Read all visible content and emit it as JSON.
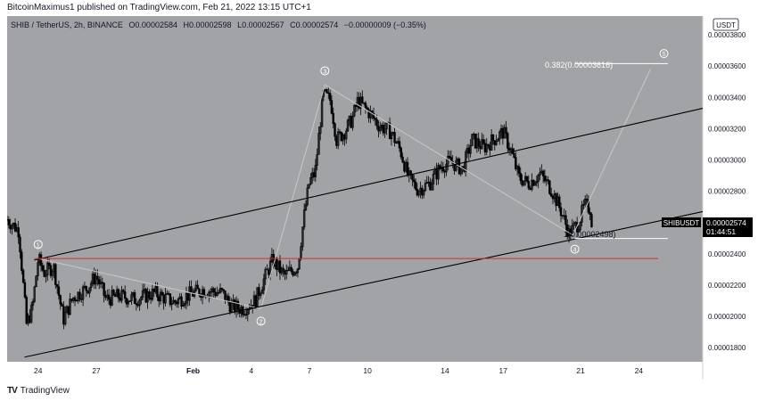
{
  "header": {
    "publisher_line": "BitcoinMaximus1 published on TradingView.com, Feb 21, 2022 13:15 UTC+1"
  },
  "legend": {
    "symbol_line": "SHIB / TetherUS, 2h, BINANCE",
    "o_label": "O",
    "o_value": "0.00002584",
    "h_label": "H",
    "h_value": "0.00002598",
    "l_label": "L",
    "l_value": "0.00002567",
    "c_label": "C",
    "c_value": "0.00002574",
    "change": "−0.00000009 (−0.35%)"
  },
  "currency_label": "USDT",
  "price_tag": {
    "symbol": "SHIBUSDT",
    "price": "0.00002574",
    "countdown": "01:44:51"
  },
  "fib": {
    "label_top": "0.382(0.00003616)",
    "label_bottom": "1(0.00002498)"
  },
  "waves": [
    "1",
    "2",
    "3",
    "4",
    "5"
  ],
  "footer": {
    "brand": "TradingView",
    "logo_glyph": "TV"
  },
  "colors": {
    "background": "#a2a3a7",
    "support_line": "#d32f2f",
    "channel": "#000000",
    "candles": "#000000",
    "wave_path": "#c8c8c8"
  },
  "chart_data": {
    "type": "candlestick",
    "y_axis_ticks": [
      "0.00003800",
      "0.00003600",
      "0.00003400",
      "0.00003200",
      "0.00003000",
      "0.00002800",
      "0.00002600",
      "0.00002400",
      "0.00002200",
      "0.00002000",
      "0.00001800"
    ],
    "y_tick_values": [
      3.8e-05,
      3.6e-05,
      3.4e-05,
      3.2e-05,
      3e-05,
      2.8e-05,
      2.6e-05,
      2.4e-05,
      2.2e-05,
      2e-05,
      1.8e-05
    ],
    "ylim": [
      1.71e-05,
      3.92e-05
    ],
    "x_axis_ticks": [
      "24",
      "27",
      "Feb",
      "4",
      "7",
      "10",
      "14",
      "17",
      "21",
      "24"
    ],
    "x_tick_days": [
      24,
      27,
      32,
      35,
      38,
      41,
      45,
      48,
      52,
      55
    ],
    "xlim": [
      22.4,
      58.3
    ],
    "price_path": [
      [
        22.4,
        2.62e-05
      ],
      [
        23.0,
        2.55e-05
      ],
      [
        23.4,
        1.95e-05
      ],
      [
        23.7,
        2.05e-05
      ],
      [
        24.0,
        2.37e-05
      ],
      [
        24.3,
        2.28e-05
      ],
      [
        24.8,
        2.32e-05
      ],
      [
        25.3,
        1.98e-05
      ],
      [
        25.8,
        2.12e-05
      ],
      [
        26.5,
        2.18e-05
      ],
      [
        27.0,
        2.26e-05
      ],
      [
        27.5,
        2.11e-05
      ],
      [
        28.2,
        2.13e-05
      ],
      [
        29.0,
        2.11e-05
      ],
      [
        30.0,
        2.15e-05
      ],
      [
        31.0,
        2.09e-05
      ],
      [
        31.8,
        2.14e-05
      ],
      [
        32.5,
        2.17e-05
      ],
      [
        33.5,
        2.15e-05
      ],
      [
        34.0,
        2.06e-05
      ],
      [
        34.6,
        2.05e-05
      ],
      [
        35.2,
        2.1e-05
      ],
      [
        35.6,
        2.22e-05
      ],
      [
        36.1,
        2.36e-05
      ],
      [
        36.7,
        2.26e-05
      ],
      [
        37.4,
        2.32e-05
      ],
      [
        37.7,
        2.62e-05
      ],
      [
        38.0,
        2.86e-05
      ],
      [
        38.3,
        2.92e-05
      ],
      [
        38.7,
        3.42e-05
      ],
      [
        39.1,
        3.38e-05
      ],
      [
        39.4,
        3.13e-05
      ],
      [
        39.8,
        3.18e-05
      ],
      [
        40.2,
        3.26e-05
      ],
      [
        40.5,
        3.38e-05
      ],
      [
        41.1,
        3.3e-05
      ],
      [
        41.6,
        3.22e-05
      ],
      [
        42.2,
        3.18e-05
      ],
      [
        42.7,
        3.06e-05
      ],
      [
        43.1,
        2.89e-05
      ],
      [
        43.6,
        2.81e-05
      ],
      [
        44.2,
        2.85e-05
      ],
      [
        44.8,
        2.96e-05
      ],
      [
        45.3,
        2.99e-05
      ],
      [
        45.9,
        2.94e-05
      ],
      [
        46.4,
        3.13e-05
      ],
      [
        47.0,
        3.08e-05
      ],
      [
        47.5,
        3.13e-05
      ],
      [
        48.0,
        3.18e-05
      ],
      [
        48.4,
        3.06e-05
      ],
      [
        48.8,
        2.89e-05
      ],
      [
        49.3,
        2.85e-05
      ],
      [
        49.9,
        2.91e-05
      ],
      [
        50.5,
        2.81e-05
      ],
      [
        51.0,
        2.67e-05
      ],
      [
        51.4,
        2.53e-05
      ],
      [
        51.9,
        2.6e-05
      ],
      [
        52.2,
        2.71e-05
      ],
      [
        52.5,
        2.69e-05
      ],
      [
        52.6,
        2.57e-05
      ]
    ],
    "channel_lines": [
      {
        "name": "upper",
        "from": [
          23.8,
          2.36e-05
        ],
        "to": [
          58.3,
          3.33e-05
        ]
      },
      {
        "name": "lower",
        "from": [
          23.3,
          1.74e-05
        ],
        "to": [
          58.3,
          2.67e-05
        ]
      }
    ],
    "support_line": {
      "from": [
        23.8,
        2.37e-05
      ],
      "to": [
        56.0,
        2.37e-05
      ]
    },
    "wave_path": [
      [
        24.0,
        2.37e-05
      ],
      [
        35.5,
        2.05e-05
      ],
      [
        38.8,
        3.48e-05
      ],
      [
        51.6,
        2.52e-05
      ],
      [
        55.6,
        3.58e-05
      ]
    ],
    "fib_levels": [
      {
        "label": "0.382(0.00003616)",
        "value": 3.616e-05,
        "from_x": 51.7,
        "to_x": 56.5
      },
      {
        "label": "1(0.00002498)",
        "value": 2.498e-05,
        "from_x": 51.7,
        "to_x": 56.5
      }
    ],
    "wave_points": [
      [
        24.0,
        2.46e-05
      ],
      [
        35.5,
        1.97e-05
      ],
      [
        38.8,
        3.57e-05
      ],
      [
        51.7,
        2.43e-05
      ],
      [
        56.3,
        3.68e-05
      ]
    ],
    "current_price": 2.574e-05
  }
}
